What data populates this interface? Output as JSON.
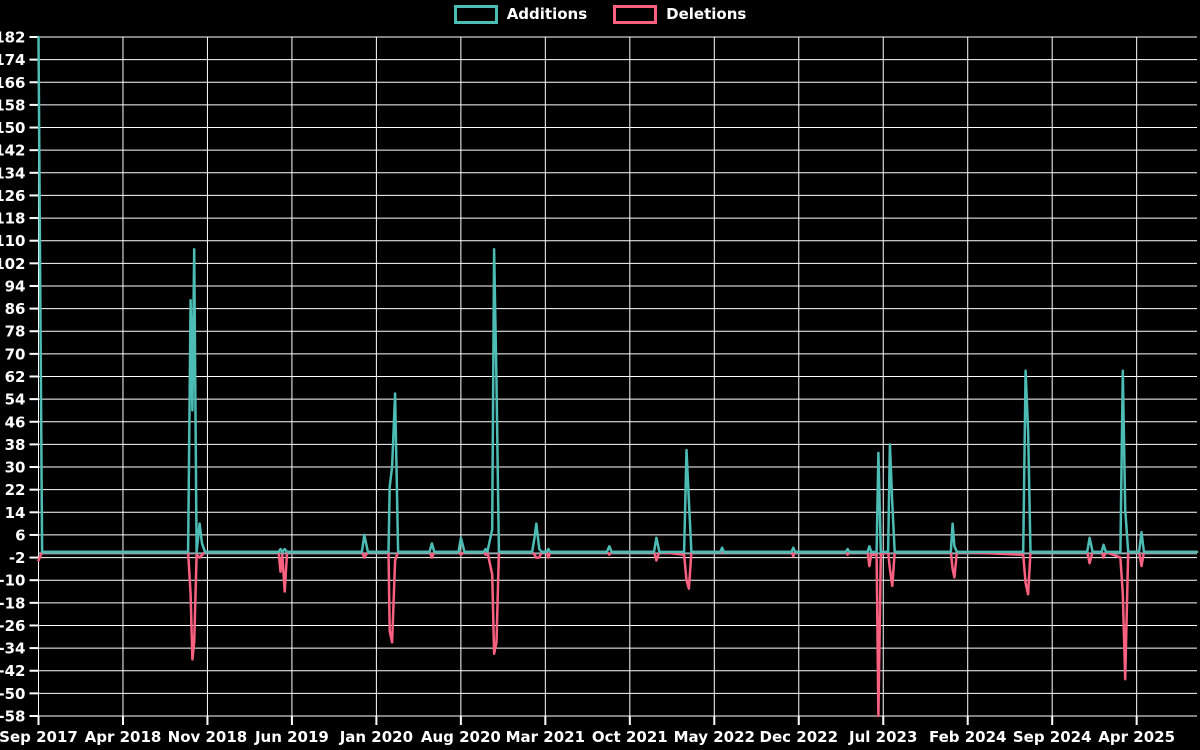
{
  "legend": [
    {
      "label": "Additions",
      "color": "#4cbcb4"
    },
    {
      "label": "Deletions",
      "color": "#fa6080"
    }
  ],
  "chart_data": {
    "type": "line",
    "title": "",
    "xlabel": "",
    "ylabel": "",
    "background_color": "#000000",
    "gridline_color": "#ffffff",
    "text_color": "#ffffff",
    "zero_line_color": "#93a8ad",
    "grid": true,
    "legend_position": "top-center",
    "x_axis": {
      "unit": "months since Sep 2017",
      "domain_months": [
        0,
        96
      ],
      "tick_months": [
        0,
        7,
        14,
        21,
        28,
        35,
        42,
        49,
        56,
        63,
        70,
        77,
        84,
        91
      ],
      "tick_labels": [
        "Sep 2017",
        "Apr 2018",
        "Nov 2018",
        "Jun 2019",
        "Jan 2020",
        "Aug 2020",
        "Mar 2021",
        "Oct 2021",
        "May 2022",
        "Dec 2022",
        "Jul 2023",
        "Feb 2024",
        "Sep 2024",
        "Apr 2025"
      ]
    },
    "y_axis": {
      "min": -58,
      "max": 182,
      "tick_step": 8,
      "tick_labels": [
        "182",
        "174",
        "166",
        "158",
        "150",
        "142",
        "134",
        "126",
        "118",
        "110",
        "102",
        "94",
        "86",
        "78",
        "70",
        "62",
        "54",
        "46",
        "38",
        "30",
        "22",
        "14",
        "6",
        "-2",
        "-10",
        "-18",
        "-26",
        "-34",
        "-42",
        "-50",
        "-58"
      ]
    },
    "series": [
      {
        "name": "Additions",
        "color": "#4cbcb4",
        "points": [
          [
            0,
            182
          ],
          [
            0.3,
            0
          ],
          [
            12.4,
            0
          ],
          [
            12.6,
            89
          ],
          [
            12.75,
            50
          ],
          [
            12.9,
            107
          ],
          [
            13.1,
            0
          ],
          [
            13.35,
            10
          ],
          [
            13.55,
            3
          ],
          [
            13.8,
            0
          ],
          [
            19.9,
            0
          ],
          [
            20.05,
            1
          ],
          [
            20.2,
            0
          ],
          [
            20.4,
            1
          ],
          [
            20.6,
            0
          ],
          [
            26.8,
            0
          ],
          [
            27.0,
            6
          ],
          [
            27.3,
            0
          ],
          [
            29.0,
            0
          ],
          [
            29.1,
            23
          ],
          [
            29.3,
            30
          ],
          [
            29.55,
            56
          ],
          [
            29.8,
            0
          ],
          [
            32.4,
            0
          ],
          [
            32.6,
            3
          ],
          [
            32.8,
            0
          ],
          [
            34.8,
            0
          ],
          [
            35.0,
            5
          ],
          [
            35.3,
            0
          ],
          [
            36.9,
            0
          ],
          [
            37.05,
            1
          ],
          [
            37.2,
            0
          ],
          [
            37.6,
            8
          ],
          [
            37.75,
            107
          ],
          [
            37.95,
            60
          ],
          [
            38.15,
            0
          ],
          [
            40.9,
            0
          ],
          [
            41.1,
            5
          ],
          [
            41.25,
            10
          ],
          [
            41.5,
            1
          ],
          [
            41.7,
            0
          ],
          [
            42.1,
            0
          ],
          [
            42.25,
            1
          ],
          [
            42.4,
            0
          ],
          [
            47.1,
            0
          ],
          [
            47.3,
            2
          ],
          [
            47.5,
            0
          ],
          [
            51.0,
            0
          ],
          [
            51.2,
            5
          ],
          [
            51.45,
            0
          ],
          [
            53.5,
            0
          ],
          [
            53.7,
            36
          ],
          [
            53.9,
            18
          ],
          [
            54.1,
            0
          ],
          [
            56.5,
            0
          ],
          [
            56.65,
            1.5
          ],
          [
            56.8,
            0
          ],
          [
            62.4,
            0
          ],
          [
            62.55,
            1.5
          ],
          [
            62.7,
            0
          ],
          [
            66.9,
            0
          ],
          [
            67.05,
            1
          ],
          [
            67.2,
            0
          ],
          [
            68.7,
            0
          ],
          [
            68.85,
            2
          ],
          [
            69.0,
            0
          ],
          [
            69.45,
            0
          ],
          [
            69.6,
            35
          ],
          [
            69.8,
            0
          ],
          [
            70.4,
            0
          ],
          [
            70.55,
            38
          ],
          [
            70.75,
            17
          ],
          [
            70.95,
            0
          ],
          [
            75.6,
            0
          ],
          [
            75.75,
            10
          ],
          [
            75.9,
            2
          ],
          [
            76.1,
            0
          ],
          [
            81.6,
            0
          ],
          [
            81.8,
            64
          ],
          [
            82.0,
            43
          ],
          [
            82.2,
            0
          ],
          [
            86.9,
            0
          ],
          [
            87.1,
            5
          ],
          [
            87.35,
            0
          ],
          [
            88.1,
            0
          ],
          [
            88.25,
            2.5
          ],
          [
            88.45,
            0
          ],
          [
            89.65,
            0
          ],
          [
            89.85,
            64
          ],
          [
            90.05,
            15
          ],
          [
            90.3,
            0
          ],
          [
            91.2,
            0
          ],
          [
            91.4,
            7
          ],
          [
            91.6,
            0
          ],
          [
            96,
            0
          ]
        ]
      },
      {
        "name": "Deletions",
        "color": "#fa6080",
        "points": [
          [
            0,
            -3
          ],
          [
            0.3,
            0
          ],
          [
            12.4,
            0
          ],
          [
            12.6,
            -15
          ],
          [
            12.75,
            -38
          ],
          [
            12.9,
            -32
          ],
          [
            13.1,
            -1
          ],
          [
            13.35,
            -2
          ],
          [
            13.8,
            0
          ],
          [
            19.9,
            0
          ],
          [
            20.05,
            -7
          ],
          [
            20.2,
            -1
          ],
          [
            20.4,
            -14
          ],
          [
            20.6,
            0
          ],
          [
            26.8,
            0
          ],
          [
            27.0,
            -2
          ],
          [
            27.3,
            0
          ],
          [
            29.0,
            0
          ],
          [
            29.1,
            -28
          ],
          [
            29.3,
            -32
          ],
          [
            29.55,
            -3
          ],
          [
            29.8,
            0
          ],
          [
            32.4,
            0
          ],
          [
            32.6,
            -2
          ],
          [
            32.8,
            0
          ],
          [
            34.8,
            0
          ],
          [
            35.0,
            -1
          ],
          [
            35.3,
            0
          ],
          [
            36.9,
            0
          ],
          [
            37.05,
            -1
          ],
          [
            37.2,
            0
          ],
          [
            37.6,
            -8
          ],
          [
            37.75,
            -36
          ],
          [
            37.95,
            -32
          ],
          [
            38.15,
            0
          ],
          [
            40.9,
            0
          ],
          [
            41.1,
            -1
          ],
          [
            41.25,
            -2
          ],
          [
            41.5,
            -2
          ],
          [
            41.7,
            0
          ],
          [
            42.1,
            0
          ],
          [
            42.25,
            -2
          ],
          [
            42.4,
            0
          ],
          [
            47.1,
            0
          ],
          [
            47.3,
            -1
          ],
          [
            47.5,
            0
          ],
          [
            51.0,
            0
          ],
          [
            51.2,
            -3
          ],
          [
            51.45,
            0
          ],
          [
            53.5,
            -1
          ],
          [
            53.7,
            -10
          ],
          [
            53.9,
            -13
          ],
          [
            54.1,
            0
          ],
          [
            62.4,
            0
          ],
          [
            62.55,
            -1.5
          ],
          [
            62.7,
            0
          ],
          [
            66.9,
            0
          ],
          [
            67.05,
            -1
          ],
          [
            67.2,
            0
          ],
          [
            68.7,
            0
          ],
          [
            68.85,
            -5
          ],
          [
            69.0,
            -1
          ],
          [
            69.45,
            -1
          ],
          [
            69.6,
            -58
          ],
          [
            69.8,
            -1
          ],
          [
            70.4,
            0
          ],
          [
            70.55,
            -6
          ],
          [
            70.75,
            -12
          ],
          [
            70.95,
            0
          ],
          [
            75.6,
            0
          ],
          [
            75.75,
            -6
          ],
          [
            75.9,
            -9
          ],
          [
            76.1,
            0
          ],
          [
            81.6,
            -1
          ],
          [
            81.8,
            -11
          ],
          [
            82.0,
            -15
          ],
          [
            82.2,
            0
          ],
          [
            86.9,
            0
          ],
          [
            87.1,
            -4
          ],
          [
            87.35,
            0
          ],
          [
            88.1,
            0
          ],
          [
            88.25,
            -2
          ],
          [
            88.45,
            0
          ],
          [
            89.65,
            -2
          ],
          [
            89.85,
            -15
          ],
          [
            90.05,
            -45
          ],
          [
            90.3,
            0
          ],
          [
            91.2,
            0
          ],
          [
            91.4,
            -5
          ],
          [
            91.6,
            0
          ],
          [
            96,
            0
          ]
        ]
      }
    ]
  }
}
